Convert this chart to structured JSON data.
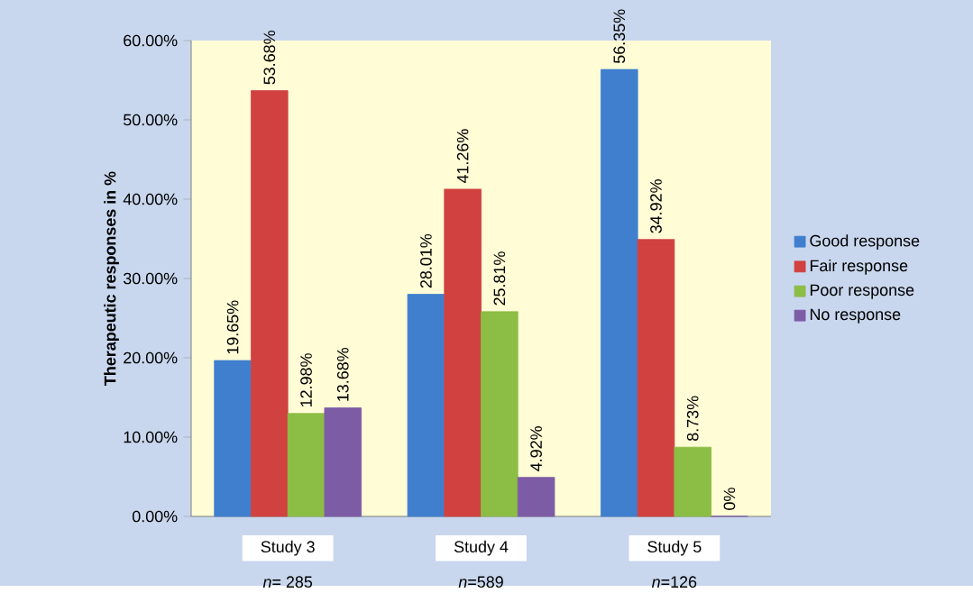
{
  "chart_data": {
    "type": "bar",
    "ylabel": "Therapeutic responses in %",
    "categories": [
      "Study 3",
      "Study 4",
      "Study 5"
    ],
    "series": [
      {
        "name": "Good response",
        "color": "#3f7fce",
        "values": [
          19.65,
          28.01,
          56.35
        ],
        "value_labels": [
          "19.65%",
          "28.01%",
          "56.35%"
        ]
      },
      {
        "name": "Fair response",
        "color": "#d04140",
        "values": [
          53.68,
          41.26,
          34.92
        ],
        "value_labels": [
          "53.68%",
          "41.26%",
          "34.92%"
        ]
      },
      {
        "name": "Poor response",
        "color": "#8cbd45",
        "values": [
          12.98,
          25.81,
          8.73
        ],
        "value_labels": [
          "12.98%",
          "25.81%",
          "8.73%"
        ]
      },
      {
        "name": "No response",
        "color": "#7d5ca6",
        "values": [
          13.68,
          4.92,
          0
        ],
        "value_labels": [
          "13.68%",
          "4.92%",
          "0%"
        ]
      }
    ],
    "ylim": [
      0,
      60
    ],
    "yticks": [
      {
        "value": 0,
        "label": "0.00%"
      },
      {
        "value": 10,
        "label": "10.00%"
      },
      {
        "value": 20,
        "label": "20.00%"
      },
      {
        "value": 30,
        "label": "30.00%"
      },
      {
        "value": 40,
        "label": "40.00%"
      },
      {
        "value": 50,
        "label": "50.00%"
      },
      {
        "value": 60,
        "label": "60.00%"
      }
    ],
    "annotations": [
      "*n*= 285",
      "*n*=589",
      "*n*=126"
    ],
    "legend": "right",
    "grid": false
  }
}
